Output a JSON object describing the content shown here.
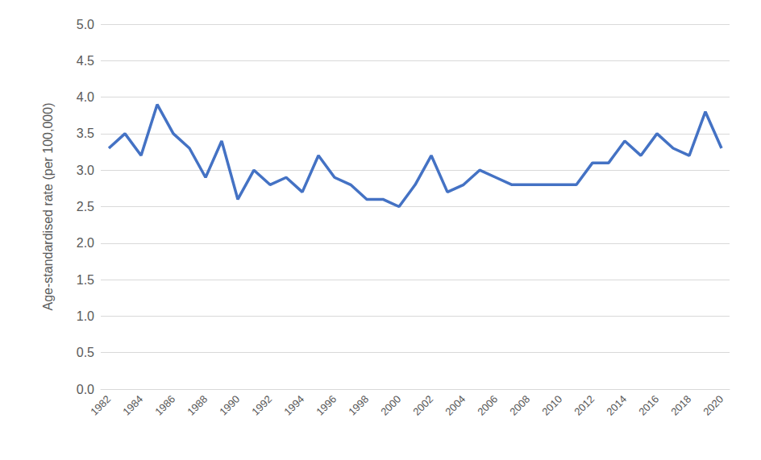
{
  "chart_data": {
    "type": "line",
    "y_label": "Age-standardised rate (per 100,000)",
    "categories": [
      "1982",
      null,
      "1984",
      null,
      "1986",
      null,
      "1988",
      null,
      "1990",
      null,
      "1992",
      null,
      "1994",
      null,
      "1996",
      null,
      "1998",
      null,
      "2000",
      null,
      "2002",
      null,
      "2004",
      null,
      "2006",
      null,
      "2008",
      null,
      "2010",
      null,
      "2012",
      null,
      "2014",
      null,
      "2016",
      null,
      "2018",
      null,
      "2020"
    ],
    "values": [
      3.3,
      3.5,
      3.2,
      3.9,
      3.5,
      3.3,
      2.9,
      3.4,
      2.6,
      3.0,
      2.8,
      2.9,
      2.7,
      3.2,
      2.9,
      2.8,
      2.6,
      2.6,
      2.5,
      2.8,
      3.2,
      2.7,
      2.8,
      3.0,
      2.9,
      2.8,
      2.8,
      2.8,
      2.8,
      2.8,
      3.1,
      3.1,
      3.4,
      3.2,
      3.5,
      3.3,
      3.2,
      3.8,
      3.3
    ],
    "color": "#4472c4",
    "ylim": [
      0,
      5
    ],
    "yticks": [
      {
        "value": 0,
        "label": "0.0"
      },
      {
        "value": 0.5,
        "label": "0.5"
      },
      {
        "value": 1,
        "label": "1.0"
      },
      {
        "value": 1.5,
        "label": "1.5"
      },
      {
        "value": 2,
        "label": "2.0"
      },
      {
        "value": 2.5,
        "label": "2.5"
      },
      {
        "value": 3,
        "label": "3.0"
      },
      {
        "value": 3.5,
        "label": "3.5"
      },
      {
        "value": 4,
        "label": "4.0"
      },
      {
        "value": 4.5,
        "label": "4.5"
      },
      {
        "value": 5,
        "label": "5.0"
      }
    ],
    "grid": true
  }
}
